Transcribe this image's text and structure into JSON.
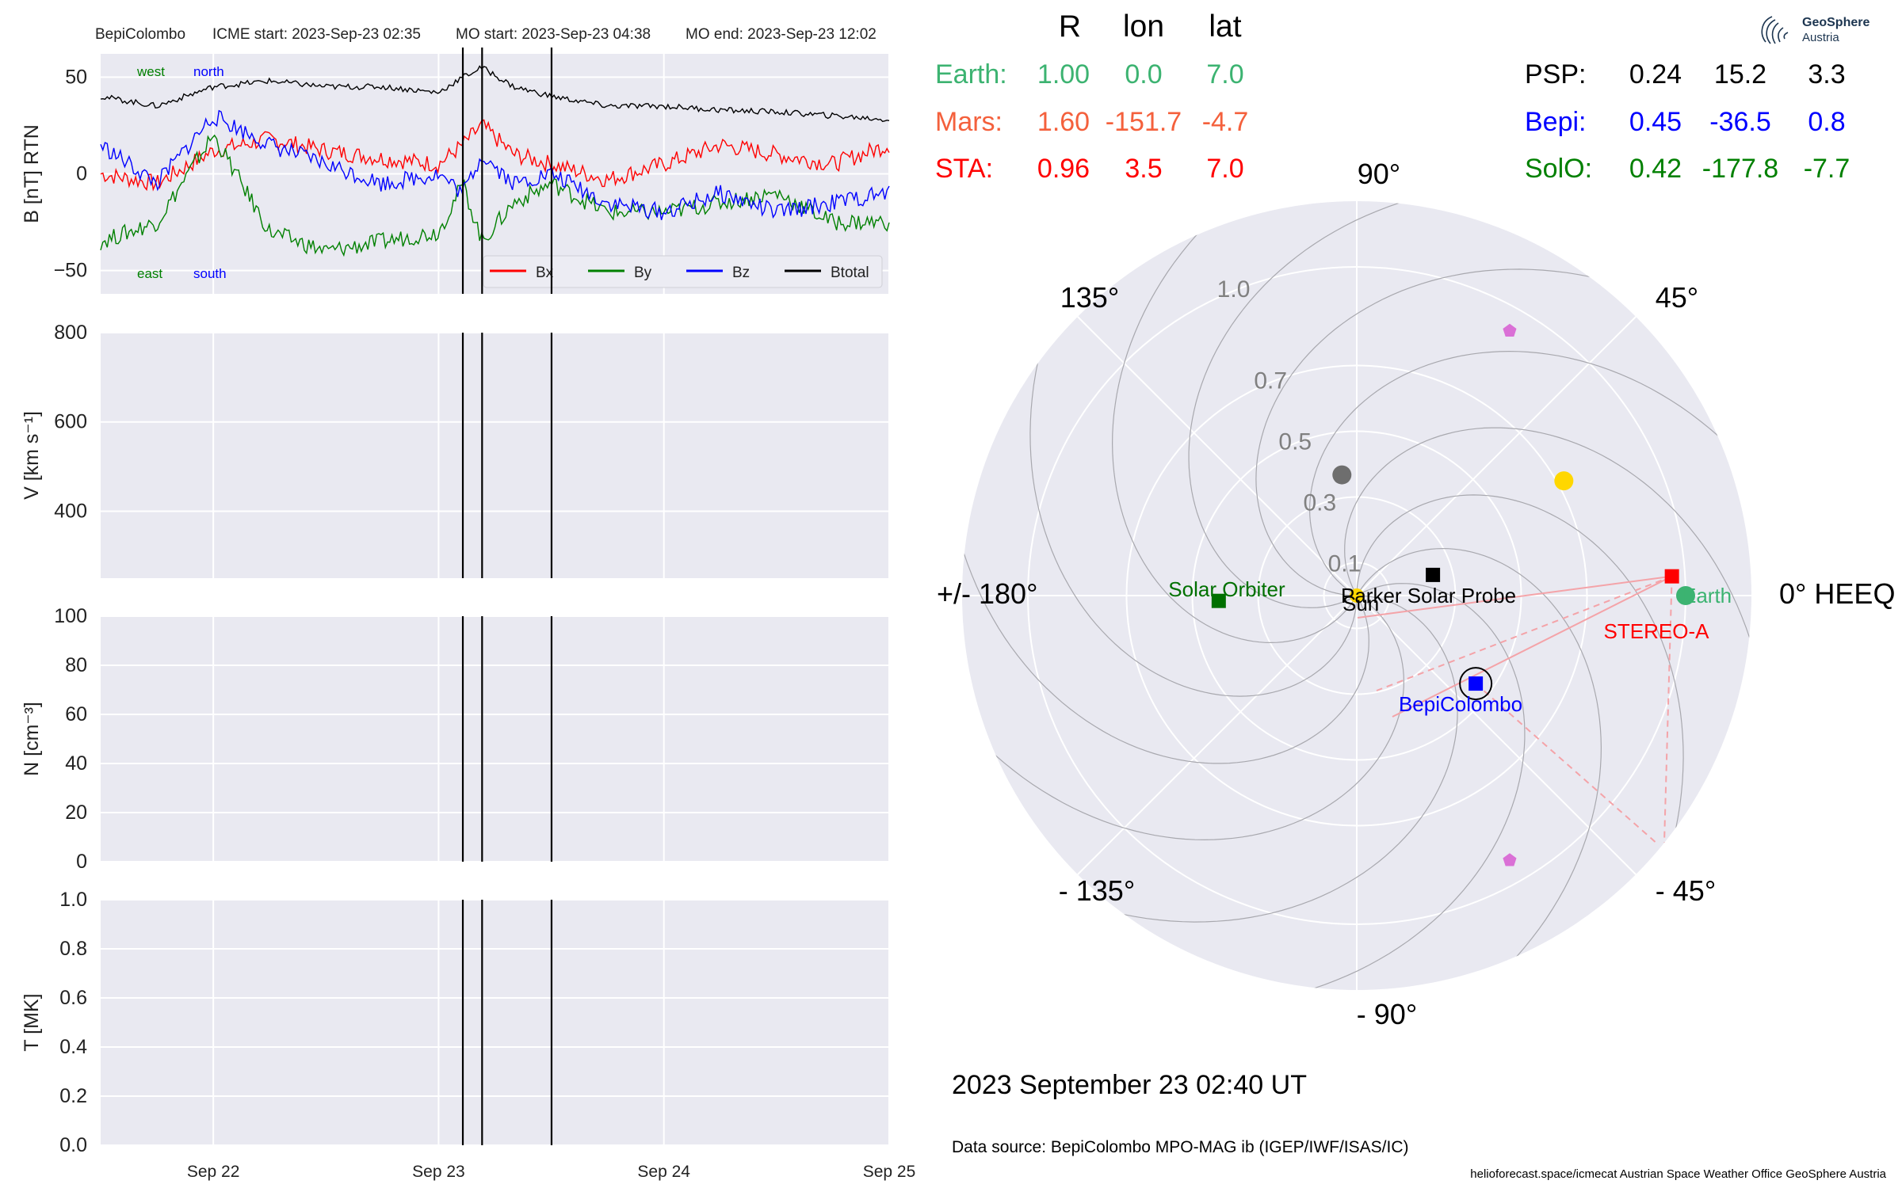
{
  "header": {
    "spacecraft": "BepiColombo",
    "icme_start": "ICME start: 2023-Sep-23 02:35",
    "mo_start": "MO start: 2023-Sep-23 04:38",
    "mo_end": "MO end: 2023-Sep-23 12:02"
  },
  "logo": {
    "name": "GeoSphere",
    "sub": "Austria"
  },
  "position_table": {
    "headers": [
      "R",
      "lon",
      "lat"
    ],
    "left": [
      {
        "name": "Earth:",
        "r": "1.00",
        "lon": "0.0",
        "lat": "7.0",
        "color": "#3cb371"
      },
      {
        "name": "Mars:",
        "r": "1.60",
        "lon": "-151.7",
        "lat": "-4.7",
        "color": "#f4603c"
      },
      {
        "name": "STA:",
        "r": "0.96",
        "lon": "3.5",
        "lat": "7.0",
        "color": "#ff0000"
      }
    ],
    "right": [
      {
        "name": "PSP:",
        "r": "0.24",
        "lon": "15.2",
        "lat": "3.3",
        "color": "#000000"
      },
      {
        "name": "Bepi:",
        "r": "0.45",
        "lon": "-36.5",
        "lat": "0.8",
        "color": "#0000ff"
      },
      {
        "name": "SolO:",
        "r": "0.42",
        "lon": "-177.8",
        "lat": "-7.7",
        "color": "#008000"
      }
    ]
  },
  "colors": {
    "panel_bg": "#e9e9f1",
    "grid": "#ffffff",
    "bx": "#ff0000",
    "by": "#008000",
    "bz": "#0000ff",
    "btotal": "#000000",
    "earth": "#3cb371",
    "sta": "#ff0000",
    "bepi": "#0000ff",
    "solo": "#007000",
    "psp": "#000000",
    "sun": "#ffd700",
    "mercury": "#6e6e6e",
    "venus": "#ffd700",
    "l4l5": "#da70d6",
    "fov": "#f4a3a8"
  },
  "chart_data": [
    {
      "type": "line",
      "title": "",
      "ylabel": "B [nT] RTN",
      "ylim": [
        -62,
        62
      ],
      "yticks": [
        "50",
        "0",
        "−50"
      ],
      "xlim": [
        "2023-09-21 12:00",
        "2023-09-25 00:00"
      ],
      "legend_position": "bottom-right",
      "annotations": {
        "west": "west",
        "north": "north",
        "east": "east",
        "south": "south"
      },
      "event_lines": [
        "2023-09-23 02:35",
        "2023-09-23 04:38",
        "2023-09-23 12:02"
      ],
      "x": [
        "2023-09-21 12:00",
        "2023-09-21 18:00",
        "2023-09-22 00:00",
        "2023-09-22 06:00",
        "2023-09-22 12:00",
        "2023-09-22 18:00",
        "2023-09-23 00:00",
        "2023-09-23 02:35",
        "2023-09-23 04:38",
        "2023-09-23 08:00",
        "2023-09-23 12:02",
        "2023-09-23 18:00",
        "2023-09-24 00:00",
        "2023-09-24 06:00",
        "2023-09-24 12:00",
        "2023-09-24 18:00",
        "2023-09-25 00:00"
      ],
      "series": [
        {
          "name": "Bx",
          "color": "#ff0000",
          "values": [
            0,
            -5,
            12,
            18,
            12,
            8,
            5,
            15,
            25,
            10,
            5,
            -3,
            5,
            15,
            10,
            5,
            15
          ]
        },
        {
          "name": "By",
          "color": "#008000",
          "values": [
            -35,
            -25,
            20,
            -30,
            -40,
            -35,
            -30,
            -5,
            -35,
            -15,
            -5,
            -20,
            -20,
            -15,
            -10,
            -25,
            -25
          ]
        },
        {
          "name": "Bz",
          "color": "#0000ff",
          "values": [
            15,
            -5,
            30,
            15,
            5,
            -5,
            0,
            -10,
            10,
            -5,
            0,
            -15,
            -20,
            -10,
            -20,
            -15,
            -10
          ]
        },
        {
          "name": "Btotal",
          "color": "#000000",
          "values": [
            40,
            35,
            45,
            48,
            45,
            45,
            42,
            50,
            55,
            45,
            40,
            35,
            35,
            33,
            32,
            30,
            28
          ]
        }
      ]
    },
    {
      "type": "line",
      "ylabel": "V [km s⁻¹]",
      "ylim": [
        250,
        800
      ],
      "yticks": [
        "800",
        "600",
        "400"
      ],
      "series": []
    },
    {
      "type": "line",
      "ylabel": "N [cm⁻³]",
      "ylim": [
        0,
        100
      ],
      "yticks": [
        "100",
        "80",
        "60",
        "40",
        "20",
        "0"
      ],
      "series": []
    },
    {
      "type": "line",
      "ylabel": "T [MK]",
      "ylim": [
        0,
        1
      ],
      "yticks": [
        "1.0",
        "0.8",
        "0.6",
        "0.4",
        "0.2",
        "0.0"
      ],
      "xticks": [
        "Sep 22",
        "Sep 23",
        "Sep 24",
        "Sep 25"
      ],
      "series": []
    },
    {
      "type": "scatter",
      "subtype": "polar",
      "angle_labels": {
        "a0": "0° HEEQ",
        "a45": "45°",
        "a90": "90°",
        "a135": "135°",
        "a180": "+/- 180°",
        "am135": "- 135°",
        "am90": "- 90°",
        "am45": "- 45°"
      },
      "r_labels": [
        "0.1",
        "0.3",
        "0.5",
        "0.7",
        "1.0"
      ],
      "rlim": [
        0,
        1.2
      ],
      "points": [
        {
          "name": "Earth",
          "r": 1.0,
          "lon": 0.0,
          "label": "Earth",
          "color": "#3cb371",
          "marker": "circle"
        },
        {
          "name": "STA",
          "r": 0.96,
          "lon": 3.5,
          "label": "STEREO-A",
          "color": "#ff0000",
          "marker": "square"
        },
        {
          "name": "Bepi",
          "r": 0.45,
          "lon": -36.5,
          "label": "BepiColombo",
          "color": "#0000ff",
          "marker": "square"
        },
        {
          "name": "SolO",
          "r": 0.42,
          "lon": -177.8,
          "label": "Solar Orbiter",
          "color": "#007000",
          "marker": "square"
        },
        {
          "name": "PSP",
          "r": 0.24,
          "lon": 15.2,
          "label": "Parker Solar Probe",
          "color": "#000000",
          "marker": "square"
        },
        {
          "name": "Sun",
          "r": 0,
          "lon": 0,
          "label": "Sun",
          "color": "#ffd700",
          "marker": "circle"
        },
        {
          "name": "Mercury",
          "r": 0.37,
          "lon": 97,
          "label": "",
          "color": "#6e6e6e",
          "marker": "circle"
        },
        {
          "name": "Venus",
          "r": 0.72,
          "lon": 29,
          "label": "",
          "color": "#ffd700",
          "marker": "circle"
        },
        {
          "name": "L4",
          "r": 0.93,
          "lon": 60,
          "label": "",
          "color": "#da70d6",
          "marker": "pentagon"
        },
        {
          "name": "L5",
          "r": 0.93,
          "lon": -60,
          "label": "",
          "color": "#da70d6",
          "marker": "pentagon"
        }
      ]
    }
  ],
  "footer": {
    "date": "2023 September 23  02:40 UT",
    "source": "Data source: BepiColombo MPO-MAG ib (IGEP/IWF/ISAS/IC)",
    "credit": "helioforecast.space/icmecat   Austrian Space Weather Office   GeoSphere Austria"
  }
}
